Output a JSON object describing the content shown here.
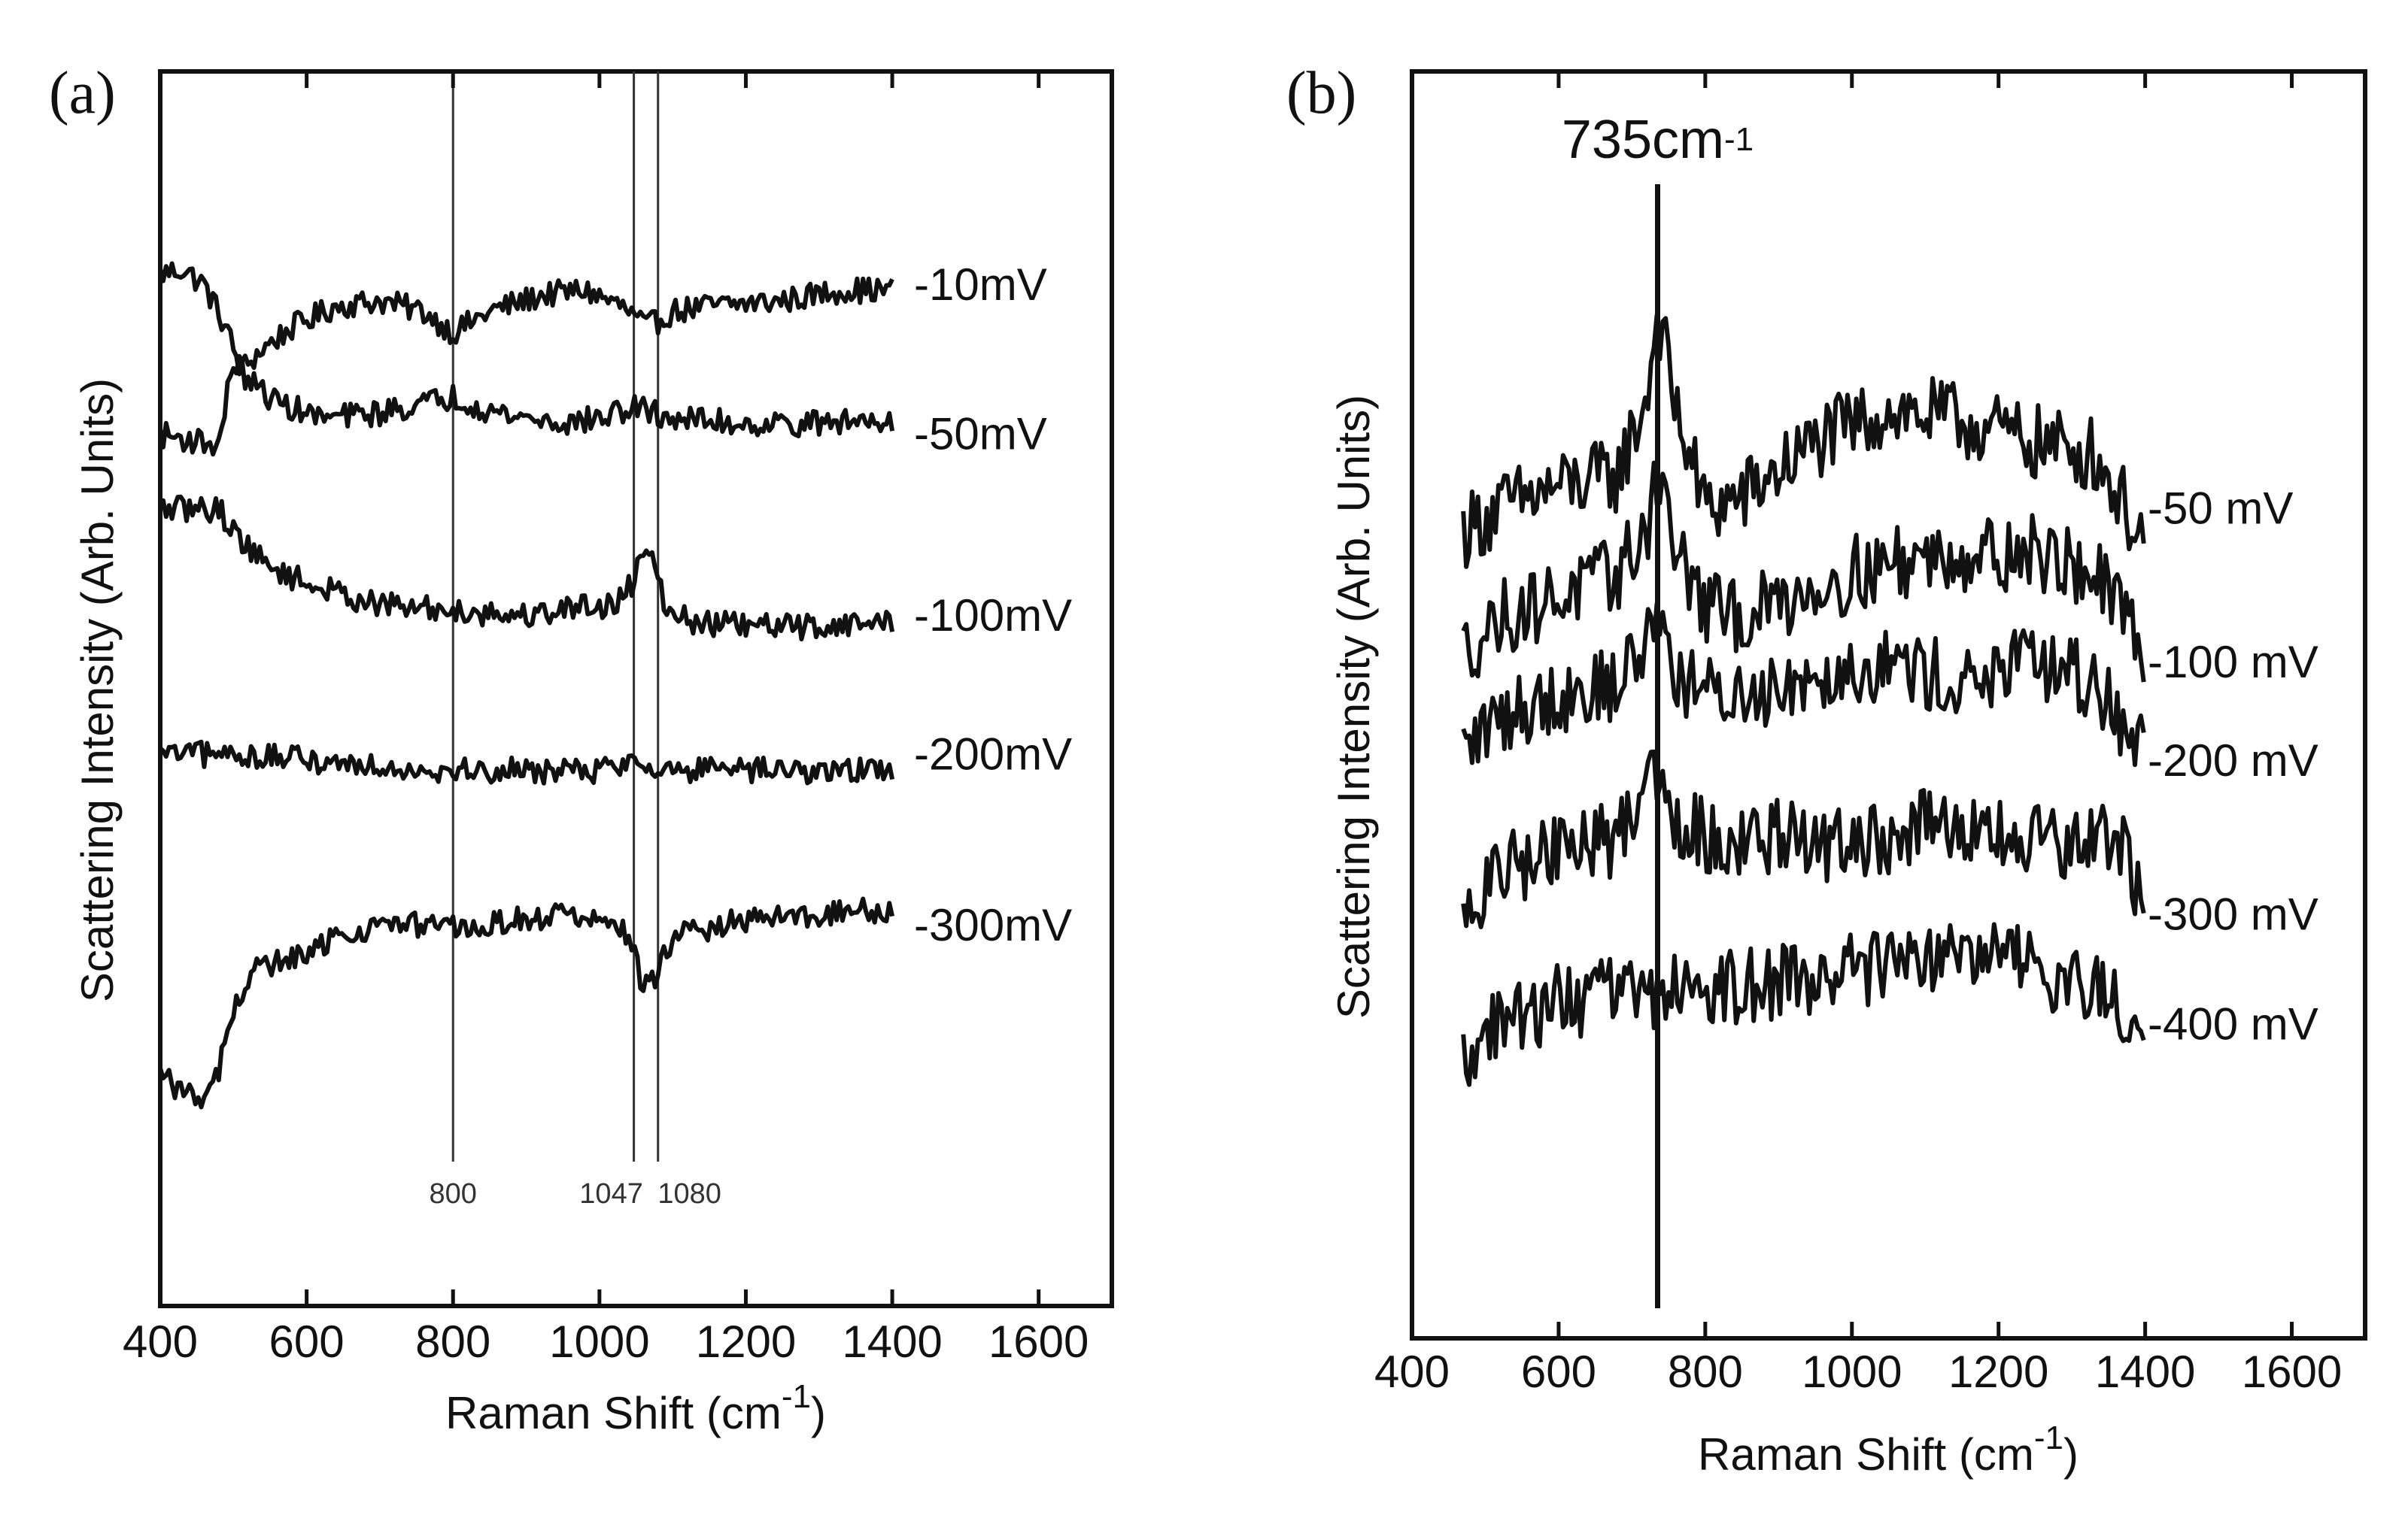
{
  "chart_data": [
    {
      "panel": "(a)",
      "type": "line",
      "xlabel": "Raman Shift (cm",
      "xlabel_sup": "-1",
      "xlabel_end": ")",
      "ylabel": "Scattering Intensity (Arb. Units)",
      "xlim": [
        400,
        1700
      ],
      "ylim": [
        0,
        100
      ],
      "xticks": [
        400,
        600,
        800,
        1000,
        1200,
        1400,
        1600
      ],
      "x_range": [
        400,
        1400
      ],
      "noise": 1.2,
      "markers": [
        {
          "x": 800,
          "label": "800"
        },
        {
          "x": 1047,
          "label": "1047"
        },
        {
          "x": 1080,
          "label": "1080"
        }
      ],
      "series": [
        {
          "name": "-10mV",
          "label_y": 86,
          "points": [
            [
              400,
              87
            ],
            [
              430,
              87.5
            ],
            [
              460,
              86
            ],
            [
              490,
              82
            ],
            [
              510,
              78
            ],
            [
              540,
              80
            ],
            [
              580,
              82
            ],
            [
              640,
              84
            ],
            [
              700,
              84.5
            ],
            [
              760,
              83.5
            ],
            [
              800,
              81.5
            ],
            [
              850,
              83.5
            ],
            [
              920,
              85
            ],
            [
              980,
              85.5
            ],
            [
              1030,
              84
            ],
            [
              1065,
              82
            ],
            [
              1100,
              83.5
            ],
            [
              1150,
              84
            ],
            [
              1250,
              84.5
            ],
            [
              1330,
              85.5
            ],
            [
              1400,
              85.5
            ]
          ]
        },
        {
          "name": "-50mV",
          "label_y": 72,
          "points": [
            [
              400,
              72
            ],
            [
              440,
              71.5
            ],
            [
              480,
              71
            ],
            [
              500,
              79
            ],
            [
              520,
              77
            ],
            [
              560,
              75
            ],
            [
              620,
              73.5
            ],
            [
              700,
              74
            ],
            [
              800,
              75.5
            ],
            [
              860,
              74
            ],
            [
              950,
              73
            ],
            [
              1000,
              73.5
            ],
            [
              1047,
              74.5
            ],
            [
              1100,
              73.5
            ],
            [
              1200,
              73
            ],
            [
              1300,
              73
            ],
            [
              1400,
              73.5
            ]
          ]
        },
        {
          "name": "-100mV",
          "label_y": 55,
          "points": [
            [
              400,
              65
            ],
            [
              440,
              65
            ],
            [
              480,
              65
            ],
            [
              500,
              63
            ],
            [
              540,
              60
            ],
            [
              600,
              58
            ],
            [
              700,
              56
            ],
            [
              800,
              55.5
            ],
            [
              900,
              55
            ],
            [
              980,
              56
            ],
            [
              1020,
              56
            ],
            [
              1045,
              58
            ],
            [
              1060,
              61.5
            ],
            [
              1075,
              61
            ],
            [
              1090,
              56
            ],
            [
              1120,
              54.5
            ],
            [
              1200,
              54
            ],
            [
              1300,
              54
            ],
            [
              1400,
              54.5
            ]
          ]
        },
        {
          "name": "-200mV",
          "label_y": 42,
          "points": [
            [
              400,
              42
            ],
            [
              450,
              42
            ],
            [
              500,
              42
            ],
            [
              600,
              41.5
            ],
            [
              700,
              41
            ],
            [
              800,
              40.5
            ],
            [
              900,
              40.5
            ],
            [
              1000,
              40.5
            ],
            [
              1050,
              41.5
            ],
            [
              1100,
              40.5
            ],
            [
              1200,
              40.5
            ],
            [
              1300,
              40.5
            ],
            [
              1400,
              40.5
            ]
          ]
        },
        {
          "name": "-300mV",
          "label_y": 26,
          "points": [
            [
              400,
              12
            ],
            [
              440,
              10
            ],
            [
              470,
              10
            ],
            [
              500,
              18
            ],
            [
              530,
              22
            ],
            [
              560,
              22.5
            ],
            [
              600,
              23
            ],
            [
              640,
              25
            ],
            [
              700,
              26
            ],
            [
              780,
              26
            ],
            [
              820,
              25.5
            ],
            [
              880,
              26.5
            ],
            [
              950,
              27
            ],
            [
              1000,
              26.5
            ],
            [
              1040,
              25
            ],
            [
              1060,
              20
            ],
            [
              1075,
              21
            ],
            [
              1100,
              25
            ],
            [
              1200,
              26.5
            ],
            [
              1300,
              27
            ],
            [
              1400,
              27.5
            ]
          ]
        }
      ]
    },
    {
      "panel": "(b)",
      "type": "line",
      "xlabel": "Raman Shift (cm",
      "xlabel_sup": "-1",
      "xlabel_end": ")",
      "ylabel": "Scattering Intensity (Arb. Units)",
      "xlim": [
        400,
        1700
      ],
      "ylim": [
        0,
        100
      ],
      "xticks": [
        400,
        600,
        800,
        1000,
        1200,
        1400,
        1600
      ],
      "x_range": [
        470,
        1400
      ],
      "noise": 3.5,
      "annotation": {
        "text": "735cm",
        "sup": "-1",
        "x": 735
      },
      "series": [
        {
          "name": "-50 mV",
          "label_y": 66,
          "points": [
            [
              470,
              64
            ],
            [
              520,
              66
            ],
            [
              600,
              68
            ],
            [
              680,
              69
            ],
            [
              720,
              76
            ],
            [
              735,
              84
            ],
            [
              760,
              75
            ],
            [
              800,
              66
            ],
            [
              850,
              67
            ],
            [
              950,
              72
            ],
            [
              1050,
              75
            ],
            [
              1150,
              74
            ],
            [
              1250,
              72
            ],
            [
              1330,
              71
            ],
            [
              1400,
              63
            ]
          ]
        },
        {
          "name": "-100 mV",
          "label_y": 52,
          "points": [
            [
              470,
              53
            ],
            [
              520,
              56
            ],
            [
              600,
              58
            ],
            [
              680,
              60
            ],
            [
              720,
              64
            ],
            [
              735,
              70
            ],
            [
              760,
              62
            ],
            [
              800,
              57
            ],
            [
              850,
              56
            ],
            [
              950,
              59
            ],
            [
              1050,
              61
            ],
            [
              1150,
              62
            ],
            [
              1250,
              62
            ],
            [
              1330,
              60
            ],
            [
              1400,
              53
            ]
          ]
        },
        {
          "name": "-200 mV",
          "label_y": 43,
          "points": [
            [
              470,
              44
            ],
            [
              520,
              47
            ],
            [
              600,
              49
            ],
            [
              680,
              50
            ],
            [
              720,
              54
            ],
            [
              735,
              57
            ],
            [
              760,
              51
            ],
            [
              800,
              49
            ],
            [
              850,
              49
            ],
            [
              950,
              51
            ],
            [
              1050,
              52
            ],
            [
              1150,
              50
            ],
            [
              1250,
              52
            ],
            [
              1330,
              50
            ],
            [
              1400,
              44
            ]
          ]
        },
        {
          "name": "-300 mV",
          "label_y": 29,
          "points": [
            [
              470,
              28
            ],
            [
              520,
              33
            ],
            [
              600,
              35
            ],
            [
              680,
              36
            ],
            [
              710,
              40
            ],
            [
              730,
              43
            ],
            [
              760,
              38
            ],
            [
              800,
              36
            ],
            [
              900,
              36
            ],
            [
              1000,
              35
            ],
            [
              1100,
              37
            ],
            [
              1200,
              36
            ],
            [
              1300,
              35
            ],
            [
              1360,
              36
            ],
            [
              1400,
              30
            ]
          ]
        },
        {
          "name": "-400 mV",
          "label_y": 19,
          "points": [
            [
              470,
              16
            ],
            [
              500,
              18
            ],
            [
              550,
              20
            ],
            [
              600,
              21
            ],
            [
              700,
              22
            ],
            [
              800,
              22
            ],
            [
              900,
              23
            ],
            [
              1000,
              24
            ],
            [
              1100,
              25
            ],
            [
              1200,
              25
            ],
            [
              1300,
              23
            ],
            [
              1350,
              22
            ],
            [
              1400,
              14
            ]
          ]
        }
      ]
    }
  ]
}
